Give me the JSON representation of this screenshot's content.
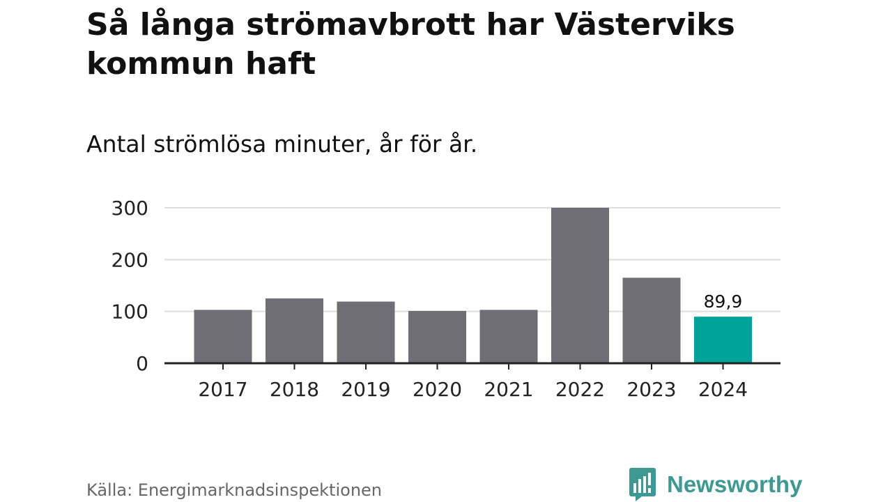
{
  "title": "Så långa strömavbrott har Västerviks kommun haft",
  "subtitle": "Antal strömlösa minuter, år för år.",
  "source": "Källa: Energimarknadsinspektionen",
  "brand": {
    "name": "Newsworthy",
    "icon": "newsworthy-logo-icon",
    "color": "#3c9a92"
  },
  "chart_data": {
    "type": "bar",
    "categories": [
      "2017",
      "2018",
      "2019",
      "2020",
      "2021",
      "2022",
      "2023",
      "2024"
    ],
    "values": [
      103,
      125,
      119,
      101,
      103,
      300,
      165,
      89.9
    ],
    "ylim": [
      0,
      300
    ],
    "yticks": [
      0,
      100,
      200,
      300
    ],
    "ytick_labels": [
      "0",
      "100",
      "200",
      "300"
    ],
    "grid": true,
    "highlight_index": 7,
    "data_labels": [
      {
        "index": 7,
        "text": "89,9"
      }
    ],
    "colors": {
      "bar": "#6f6e74",
      "highlight": "#00a39a",
      "grid": "#dedede",
      "axis": "#222222"
    }
  }
}
